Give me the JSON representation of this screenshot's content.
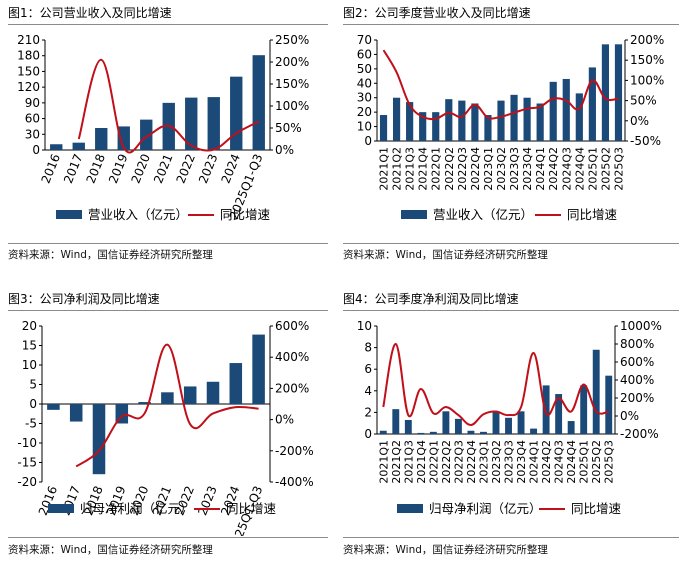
{
  "colors": {
    "bar": "#1c4a78",
    "line": "#c0101a",
    "rule": "#8a8a8a"
  },
  "panels": [
    {
      "title": "图1：公司营业收入及同比增速",
      "source": "资料来源：Wind，国信证券经济研究所整理"
    },
    {
      "title": "图2：公司季度营业收入及同比增速",
      "source": "资料来源：Wind，国信证券经济研究所整理"
    },
    {
      "title": "图3：公司净利润及同比增速",
      "source": "资料来源：Wind，国信证券经济研究所整理"
    },
    {
      "title": "图4：公司季度净利润及同比增速",
      "source": "资料来源：Wind，国信证券经济研究所整理"
    }
  ],
  "chart_data": [
    {
      "type": "bar",
      "title": "图1：公司营业收入及同比增速",
      "categories": [
        "2016",
        "2017",
        "2018",
        "2019",
        "2020",
        "2021",
        "2022",
        "2023",
        "2024",
        "2025Q1-Q3"
      ],
      "series": [
        {
          "name": "营业收入（亿元）",
          "type": "bar",
          "axis": "left",
          "values": [
            11,
            14,
            42,
            45,
            58,
            90,
            100,
            101,
            140,
            181
          ]
        },
        {
          "name": "同比增速",
          "type": "line",
          "axis": "right",
          "values": [
            null,
            25,
            205,
            5,
            30,
            55,
            10,
            1,
            38,
            65
          ]
        }
      ],
      "y_left": {
        "min": 0,
        "max": 210,
        "ticks": [
          0,
          30,
          60,
          90,
          120,
          150,
          180,
          210
        ]
      },
      "y_right": {
        "min": 0,
        "max": 250,
        "ticks": [
          0,
          50,
          100,
          150,
          200,
          250
        ],
        "unit": "%"
      },
      "legend": "bottom"
    },
    {
      "type": "bar",
      "title": "图2：公司季度营业收入及同比增速",
      "categories": [
        "2021Q1",
        "2021Q2",
        "2021Q3",
        "2021Q4",
        "2022Q1",
        "2022Q2",
        "2022Q3",
        "2022Q4",
        "2023Q1",
        "2023Q2",
        "2023Q3",
        "2023Q4",
        "2024Q1",
        "2024Q2",
        "2024Q3",
        "2024Q4",
        "2025Q1",
        "2025Q2",
        "2025Q3"
      ],
      "series": [
        {
          "name": "营业收入（亿元）",
          "type": "bar",
          "axis": "left",
          "values": [
            18,
            30,
            27,
            20,
            20,
            29,
            28,
            26,
            18,
            28,
            32,
            30,
            26,
            41,
            43,
            33,
            51,
            67,
            67
          ]
        },
        {
          "name": "同比增速",
          "type": "line",
          "axis": "right",
          "values": [
            175,
            120,
            40,
            10,
            5,
            20,
            10,
            40,
            8,
            10,
            20,
            30,
            35,
            55,
            50,
            30,
            100,
            55,
            55
          ]
        }
      ],
      "y_left": {
        "min": 0,
        "max": 70,
        "ticks": [
          0,
          10,
          20,
          30,
          40,
          50,
          60,
          70
        ]
      },
      "y_right": {
        "min": -50,
        "max": 200,
        "ticks": [
          -50,
          0,
          50,
          100,
          150,
          200
        ],
        "unit": "%"
      },
      "legend": "bottom"
    },
    {
      "type": "bar",
      "title": "图3：公司净利润及同比增速",
      "categories": [
        "2016",
        "2017",
        "2018",
        "2019",
        "2020",
        "2021",
        "2022",
        "2023",
        "2024",
        "2025Q1-Q3"
      ],
      "series": [
        {
          "name": "归母净利润（亿元）",
          "type": "bar",
          "axis": "left",
          "values": [
            -1.5,
            -4.5,
            -18,
            -5,
            0.5,
            3,
            4.5,
            5.7,
            10.5,
            17.8
          ]
        },
        {
          "name": "同比增速",
          "type": "line",
          "axis": "right",
          "values": [
            null,
            -300,
            -200,
            20,
            40,
            480,
            -30,
            40,
            80,
            70
          ]
        }
      ],
      "y_left": {
        "min": -20,
        "max": 20,
        "ticks": [
          -20,
          -15,
          -10,
          -5,
          0,
          5,
          10,
          15,
          20
        ]
      },
      "y_right": {
        "min": -400,
        "max": 600,
        "ticks": [
          -400,
          -200,
          0,
          200,
          400,
          600
        ],
        "unit": "%"
      },
      "legend": "bottom"
    },
    {
      "type": "bar",
      "title": "图4：公司季度净利润及同比增速",
      "categories": [
        "2021Q1",
        "2021Q2",
        "2021Q3",
        "2021Q4",
        "2022Q1",
        "2022Q2",
        "2022Q3",
        "2022Q4",
        "2023Q1",
        "2023Q2",
        "2023Q3",
        "2023Q4",
        "2024Q1",
        "2024Q2",
        "2024Q3",
        "2024Q4",
        "2025Q1",
        "2025Q2",
        "2025Q3"
      ],
      "series": [
        {
          "name": "归母净利润（亿元）",
          "type": "bar",
          "axis": "left",
          "values": [
            0.3,
            2.3,
            1.3,
            0.1,
            0.2,
            2.1,
            1.4,
            0.3,
            0.2,
            2.0,
            1.5,
            2.1,
            0.5,
            4.5,
            3.7,
            1.2,
            4.5,
            7.8,
            5.4
          ]
        },
        {
          "name": "同比增速",
          "type": "line",
          "axis": "right",
          "values": [
            100,
            800,
            10,
            300,
            30,
            100,
            10,
            -100,
            20,
            50,
            10,
            100,
            700,
            30,
            200,
            50,
            350,
            50,
            50
          ]
        }
      ],
      "y_left": {
        "min": 0,
        "max": 10,
        "ticks": [
          0,
          2,
          4,
          6,
          8,
          10
        ]
      },
      "y_right": {
        "min": -200,
        "max": 1000,
        "ticks": [
          -200,
          0,
          200,
          400,
          600,
          800,
          1000
        ],
        "unit": "%"
      },
      "legend": "bottom"
    }
  ]
}
